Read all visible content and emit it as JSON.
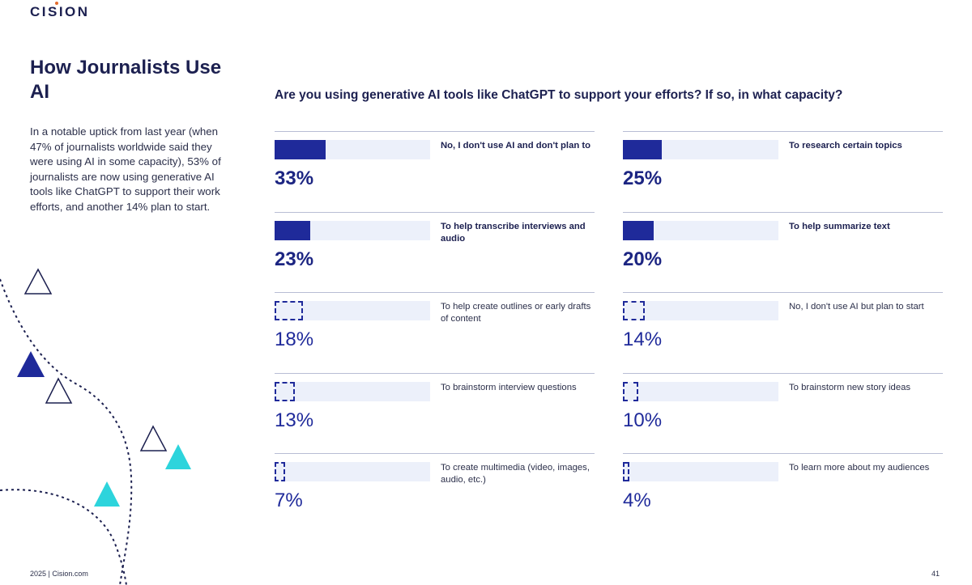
{
  "brand": {
    "logo": "CISION"
  },
  "heading": {
    "title": "How Journalists Use AI"
  },
  "intro": "In a notable uptick from last year (when 47% of journalists worldwide said they were using AI in some capacity), 53% of journalists are now using generative AI tools like ChatGPT to support their work efforts, and another 14% plan to start.",
  "footer": {
    "left": "2025 | Cision.com",
    "page": "41"
  },
  "colors": {
    "navy": "#1f2a9a",
    "track": "#ecf0fa",
    "teal": "#2dd4dc",
    "text": "#1c2050"
  },
  "chart_data": {
    "type": "bar",
    "title": "Are you using generative AI tools like ChatGPT to support your efforts? If so, in what capacity?",
    "unit": "%",
    "items": [
      {
        "label": "No, I don't use AI and don't plan to",
        "value": 33,
        "display": "33%",
        "highlight": true
      },
      {
        "label": "To research certain topics",
        "value": 25,
        "display": "25%",
        "highlight": true
      },
      {
        "label": "To help transcribe interviews and audio",
        "value": 23,
        "display": "23%",
        "highlight": true
      },
      {
        "label": "To help summarize text",
        "value": 20,
        "display": "20%",
        "highlight": true
      },
      {
        "label": "To help create outlines or early drafts of content",
        "value": 18,
        "display": "18%",
        "highlight": false
      },
      {
        "label": "No, I don't use AI but plan to start",
        "value": 14,
        "display": "14%",
        "highlight": false
      },
      {
        "label": "To brainstorm interview questions",
        "value": 13,
        "display": "13%",
        "highlight": false
      },
      {
        "label": "To brainstorm new story ideas",
        "value": 10,
        "display": "10%",
        "highlight": false
      },
      {
        "label": "To create multimedia (video, images, audio, etc.)",
        "value": 7,
        "display": "7%",
        "highlight": false
      },
      {
        "label": "To learn more about my audiences",
        "value": 4,
        "display": "4%",
        "highlight": false
      }
    ]
  }
}
